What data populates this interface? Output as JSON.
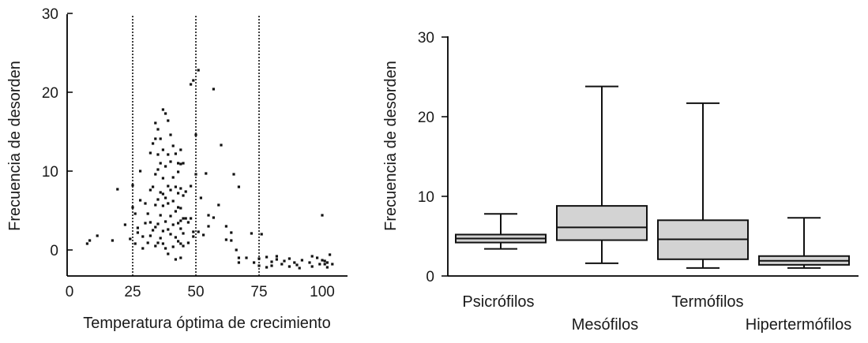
{
  "chart_data": [
    {
      "type": "scatter",
      "xlabel": "Temperatura óptima de crecimiento",
      "ylabel": "Frecuencia de desorden",
      "xlim": [
        0,
        110
      ],
      "ylim": [
        -3,
        30
      ],
      "xticks": [
        "0",
        "25",
        "50",
        "75",
        "100"
      ],
      "yticks": [
        "0",
        "10",
        "20",
        "30"
      ],
      "reference_lines_x": [
        25,
        50,
        75
      ],
      "points": [
        [
          7,
          0.8
        ],
        [
          8,
          1.2
        ],
        [
          11,
          1.8
        ],
        [
          17,
          1.2
        ],
        [
          19,
          7.7
        ],
        [
          22,
          3.2
        ],
        [
          24,
          1.4
        ],
        [
          25,
          5.4
        ],
        [
          25,
          8.2
        ],
        [
          26,
          0.8
        ],
        [
          26,
          4.6
        ],
        [
          27,
          2.8
        ],
        [
          27,
          2.2
        ],
        [
          28,
          6.3
        ],
        [
          28,
          10.0
        ],
        [
          29,
          0.2
        ],
        [
          29,
          1.7
        ],
        [
          30,
          3.4
        ],
        [
          30,
          5.9
        ],
        [
          31,
          0.9
        ],
        [
          31,
          4.6
        ],
        [
          32,
          1.8
        ],
        [
          32,
          3.5
        ],
        [
          32,
          7.6
        ],
        [
          32,
          12.3
        ],
        [
          33,
          2.5
        ],
        [
          33,
          8.0
        ],
        [
          33,
          13.5
        ],
        [
          34,
          0.5
        ],
        [
          34,
          2.9
        ],
        [
          34,
          5.7
        ],
        [
          34,
          9.6
        ],
        [
          34,
          14.1
        ],
        [
          34,
          16.1
        ],
        [
          35,
          0.9
        ],
        [
          35,
          3.3
        ],
        [
          35,
          6.4
        ],
        [
          35,
          10.2
        ],
        [
          35,
          12.1
        ],
        [
          35,
          15.3
        ],
        [
          36,
          1.5
        ],
        [
          36,
          4.4
        ],
        [
          36,
          7.3
        ],
        [
          36,
          11.0
        ],
        [
          36,
          14.1
        ],
        [
          37,
          0.8
        ],
        [
          37,
          2.4
        ],
        [
          37,
          5.6
        ],
        [
          37,
          7.1
        ],
        [
          37,
          9.1
        ],
        [
          37,
          12.7
        ],
        [
          37,
          17.8
        ],
        [
          38,
          0.2
        ],
        [
          38,
          3.6
        ],
        [
          38,
          6.6
        ],
        [
          38,
          10.6
        ],
        [
          38,
          17.3
        ],
        [
          39,
          -0.5
        ],
        [
          39,
          2.6
        ],
        [
          39,
          5.9
        ],
        [
          39,
          8.1
        ],
        [
          39,
          12.1
        ],
        [
          39,
          16.4
        ],
        [
          40,
          2.0
        ],
        [
          40,
          4.3
        ],
        [
          40,
          7.6
        ],
        [
          40,
          11.2
        ],
        [
          40,
          14.6
        ],
        [
          41,
          0.4
        ],
        [
          41,
          3.2
        ],
        [
          41,
          6.2
        ],
        [
          41,
          9.2
        ],
        [
          41,
          13.2
        ],
        [
          42,
          -1.2
        ],
        [
          42,
          1.6
        ],
        [
          42,
          4.9
        ],
        [
          42,
          8.0
        ],
        [
          42,
          12.2
        ],
        [
          43,
          1.1
        ],
        [
          43,
          3.4
        ],
        [
          43,
          5.4
        ],
        [
          43,
          7.2
        ],
        [
          43,
          9.9
        ],
        [
          43,
          11.0
        ],
        [
          44,
          -1.0
        ],
        [
          44,
          0.8
        ],
        [
          44,
          2.7
        ],
        [
          44,
          3.7
        ],
        [
          44,
          5.3
        ],
        [
          44,
          7.8
        ],
        [
          44,
          10.9
        ],
        [
          44,
          12.7
        ],
        [
          45,
          0.5
        ],
        [
          45,
          2.1
        ],
        [
          45,
          4.0
        ],
        [
          45,
          6.9
        ],
        [
          45,
          11.0
        ],
        [
          46,
          4.0
        ],
        [
          46,
          7.4
        ],
        [
          47,
          0.9
        ],
        [
          47,
          3.5
        ],
        [
          48,
          4.0
        ],
        [
          48,
          8.1
        ],
        [
          48,
          21.0
        ],
        [
          49,
          1.7
        ],
        [
          49,
          21.5
        ],
        [
          49,
          2.3
        ],
        [
          50,
          14.6
        ],
        [
          50,
          9.6
        ],
        [
          51,
          2.3
        ],
        [
          51,
          22.8
        ],
        [
          52,
          6.6
        ],
        [
          53,
          1.9
        ],
        [
          54,
          9.7
        ],
        [
          55,
          3.0
        ],
        [
          55,
          4.4
        ],
        [
          57,
          4.1
        ],
        [
          57,
          20.4
        ],
        [
          59,
          5.7
        ],
        [
          60,
          13.3
        ],
        [
          62,
          3.0
        ],
        [
          62,
          1.3
        ],
        [
          64,
          1.2
        ],
        [
          64,
          2.2
        ],
        [
          65,
          9.6
        ],
        [
          66,
          0.0
        ],
        [
          67,
          -1.0
        ],
        [
          67,
          -1.6
        ],
        [
          67,
          8.0
        ],
        [
          70,
          -1.0
        ],
        [
          72,
          2.1
        ],
        [
          73,
          -1.6
        ],
        [
          75,
          -1.1
        ],
        [
          75,
          -2.0
        ],
        [
          76,
          2.0
        ],
        [
          78,
          -0.9
        ],
        [
          78,
          -2.2
        ],
        [
          80,
          -1.5
        ],
        [
          80,
          -2.0
        ],
        [
          82,
          -1.2
        ],
        [
          82,
          -0.8
        ],
        [
          84,
          -1.8
        ],
        [
          85,
          -1.4
        ],
        [
          87,
          -1.1
        ],
        [
          87,
          -2.1
        ],
        [
          89,
          -1.6
        ],
        [
          90,
          -1.9
        ],
        [
          91,
          -2.3
        ],
        [
          92,
          -1.3
        ],
        [
          95,
          -1.6
        ],
        [
          96,
          -0.8
        ],
        [
          96,
          -2.1
        ],
        [
          98,
          -1.0
        ],
        [
          99,
          -1.8
        ],
        [
          100,
          -1.3
        ],
        [
          100,
          4.4
        ],
        [
          101,
          -1.8
        ],
        [
          101,
          -1.4
        ],
        [
          102,
          -2.2
        ],
        [
          102,
          -1.6
        ],
        [
          103,
          -0.6
        ],
        [
          104,
          -1.8
        ]
      ]
    },
    {
      "type": "box",
      "ylabel": "Frecuencia de desorden",
      "ylim": [
        0,
        30
      ],
      "yticks": [
        "0",
        "10",
        "20",
        "30"
      ],
      "categories": [
        "Psicrófilos",
        "Mesófilos",
        "Termófilos",
        "Hipertermófilos"
      ],
      "boxes": [
        {
          "min": 3.4,
          "q1": 4.2,
          "median": 4.7,
          "q3": 5.2,
          "max": 7.8
        },
        {
          "min": 1.6,
          "q1": 4.5,
          "median": 6.1,
          "q3": 8.8,
          "max": 23.8
        },
        {
          "min": 1.0,
          "q1": 2.1,
          "median": 4.6,
          "q3": 7.0,
          "max": 21.7
        },
        {
          "min": 1.0,
          "q1": 1.4,
          "median": 1.9,
          "q3": 2.5,
          "max": 7.3
        }
      ],
      "box_color": "#d3d3d3"
    }
  ]
}
